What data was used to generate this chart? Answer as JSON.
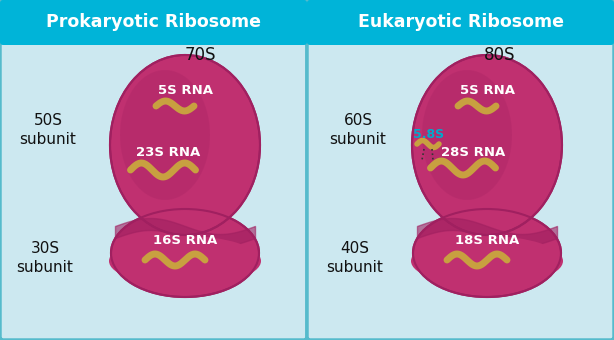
{
  "bg_color": "#cce8f0",
  "header_color": "#00b4d8",
  "header_text_color": "white",
  "ribosome_color": "#c03070",
  "ribosome_dark": "#a02060",
  "ribosome_light": "#d04080",
  "rna_color": "#c8a040",
  "rna_light": "#ddb850",
  "white_text": "white",
  "black_text": "#111111",
  "cyan_text": "#00aacc",
  "border_color": "#55bbcc",
  "left_title": "Prokaryotic Ribosome",
  "right_title": "Eukaryotic Ribosome",
  "left_s": "70S",
  "right_s": "80S",
  "left_large": "50S\nsubunit",
  "left_small": "30S\nsubunit",
  "right_large": "60S\nsubunit",
  "right_small": "40S\nsubunit",
  "extra_label": "5.8S"
}
